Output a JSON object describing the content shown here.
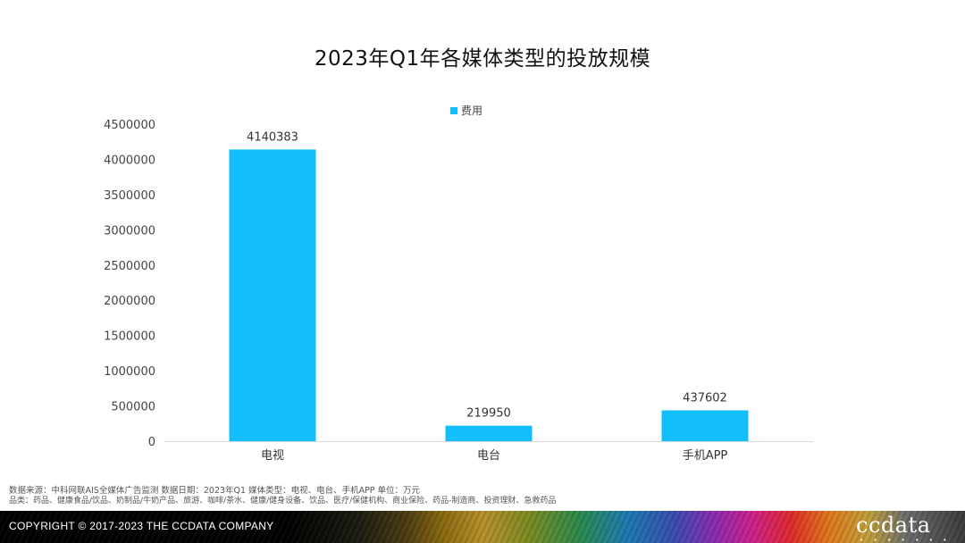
{
  "chart_data": {
    "type": "bar",
    "title": "2023年Q1年各媒体类型的投放规模",
    "categories": [
      "电视",
      "电台",
      "手机APP"
    ],
    "series": [
      {
        "name": "费用",
        "values": [
          4140383,
          219950,
          437602
        ],
        "color": "#12BEFB"
      }
    ],
    "ylim": [
      0,
      4500000
    ],
    "yticks": [
      "0",
      "500000",
      "1000000",
      "1500000",
      "2000000",
      "2500000",
      "3000000",
      "3500000",
      "4000000",
      "4500000"
    ],
    "grid": false,
    "legend": "top-center",
    "data_labels": true
  },
  "footnote": {
    "line1": "数据来源：中科网联AIS全媒体广告监测  数据日期：2023年Q1 媒体类型：电视、电台、手机APP 单位：万元",
    "line2": "品类：药品、健康食品/饮品、奶制品/牛奶产品、旅游、咖啡/茶水、健康/健身设备、饮品、医疗/保健机构、商业保险、药品-制造商、投资理财、急救药品"
  },
  "footer": {
    "copyright": "COPYRIGHT © 2017-2023 THE CCDATA COMPANY",
    "logo": "ccdata",
    "logo_dots": "• • • • • • •"
  }
}
